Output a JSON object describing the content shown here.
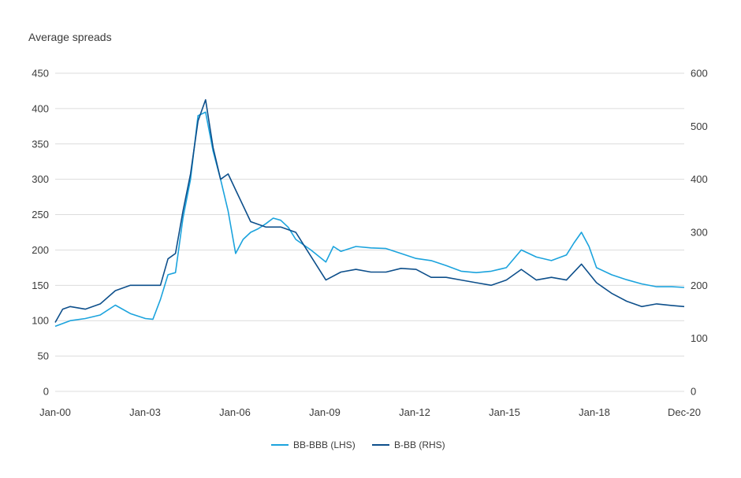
{
  "chart_data": {
    "type": "line",
    "title": "Average spreads",
    "x_ticks": [
      "Jan-00",
      "Jan-03",
      "Jan-06",
      "Jan-09",
      "Jan-12",
      "Jan-15",
      "Jan-18",
      "Dec-20"
    ],
    "x_range": [
      "2000-01",
      "2020-12"
    ],
    "y_left": {
      "lim": [
        0,
        450
      ],
      "ticks": [
        0,
        50,
        100,
        150,
        200,
        250,
        300,
        350,
        400,
        450
      ]
    },
    "y_right": {
      "lim": [
        0,
        600
      ],
      "ticks": [
        0,
        100,
        200,
        300,
        400,
        500,
        600
      ]
    },
    "grid": true,
    "legend_position": "bottom-center",
    "series": [
      {
        "name": "BB-BBB (LHS)",
        "axis": "left",
        "color": "#1ba3dd",
        "points": [
          [
            "2000-01",
            92
          ],
          [
            "2000-07",
            100
          ],
          [
            "2001-01",
            103
          ],
          [
            "2001-07",
            108
          ],
          [
            "2002-01",
            122
          ],
          [
            "2002-07",
            110
          ],
          [
            "2003-01",
            103
          ],
          [
            "2003-04",
            102
          ],
          [
            "2003-07",
            130
          ],
          [
            "2003-10",
            165
          ],
          [
            "2004-01",
            168
          ],
          [
            "2004-04",
            245
          ],
          [
            "2004-07",
            300
          ],
          [
            "2004-10",
            390
          ],
          [
            "2005-01",
            395
          ],
          [
            "2005-04",
            340
          ],
          [
            "2005-07",
            300
          ],
          [
            "2005-10",
            255
          ],
          [
            "2006-01",
            195
          ],
          [
            "2006-04",
            215
          ],
          [
            "2006-07",
            225
          ],
          [
            "2006-10",
            230
          ],
          [
            "2007-01",
            237
          ],
          [
            "2007-04",
            245
          ],
          [
            "2007-07",
            242
          ],
          [
            "2007-10",
            232
          ],
          [
            "2008-01",
            215
          ],
          [
            "2008-07",
            200
          ],
          [
            "2009-01",
            183
          ],
          [
            "2009-04",
            205
          ],
          [
            "2009-07",
            198
          ],
          [
            "2010-01",
            205
          ],
          [
            "2010-07",
            203
          ],
          [
            "2011-01",
            202
          ],
          [
            "2011-07",
            195
          ],
          [
            "2012-01",
            188
          ],
          [
            "2012-07",
            185
          ],
          [
            "2013-01",
            178
          ],
          [
            "2013-07",
            170
          ],
          [
            "2014-01",
            168
          ],
          [
            "2014-07",
            170
          ],
          [
            "2015-01",
            175
          ],
          [
            "2015-07",
            200
          ],
          [
            "2016-01",
            190
          ],
          [
            "2016-07",
            185
          ],
          [
            "2017-01",
            193
          ],
          [
            "2017-04",
            210
          ],
          [
            "2017-07",
            225
          ],
          [
            "2017-10",
            205
          ],
          [
            "2018-01",
            175
          ],
          [
            "2018-07",
            165
          ],
          [
            "2019-01",
            158
          ],
          [
            "2019-07",
            152
          ],
          [
            "2020-01",
            148
          ],
          [
            "2020-07",
            148
          ],
          [
            "2020-12",
            147
          ]
        ]
      },
      {
        "name": "B-BB (RHS)",
        "axis": "right",
        "color": "#0d4f8b",
        "points": [
          [
            "2000-01",
            130
          ],
          [
            "2000-04",
            155
          ],
          [
            "2000-07",
            160
          ],
          [
            "2001-01",
            155
          ],
          [
            "2001-07",
            165
          ],
          [
            "2002-01",
            190
          ],
          [
            "2002-07",
            200
          ],
          [
            "2003-01",
            200
          ],
          [
            "2003-07",
            200
          ],
          [
            "2003-10",
            250
          ],
          [
            "2004-01",
            260
          ],
          [
            "2004-04",
            340
          ],
          [
            "2004-07",
            410
          ],
          [
            "2004-10",
            510
          ],
          [
            "2005-01",
            550
          ],
          [
            "2005-04",
            460
          ],
          [
            "2005-07",
            400
          ],
          [
            "2005-10",
            410
          ],
          [
            "2006-01",
            380
          ],
          [
            "2006-07",
            320
          ],
          [
            "2007-01",
            310
          ],
          [
            "2007-07",
            310
          ],
          [
            "2008-01",
            300
          ],
          [
            "2008-07",
            255
          ],
          [
            "2009-01",
            210
          ],
          [
            "2009-07",
            225
          ],
          [
            "2010-01",
            230
          ],
          [
            "2010-07",
            225
          ],
          [
            "2011-01",
            225
          ],
          [
            "2011-07",
            232
          ],
          [
            "2012-01",
            230
          ],
          [
            "2012-07",
            215
          ],
          [
            "2013-01",
            215
          ],
          [
            "2013-07",
            210
          ],
          [
            "2014-01",
            205
          ],
          [
            "2014-07",
            200
          ],
          [
            "2015-01",
            210
          ],
          [
            "2015-07",
            230
          ],
          [
            "2016-01",
            210
          ],
          [
            "2016-07",
            215
          ],
          [
            "2017-01",
            210
          ],
          [
            "2017-07",
            240
          ],
          [
            "2018-01",
            205
          ],
          [
            "2018-07",
            185
          ],
          [
            "2019-01",
            170
          ],
          [
            "2019-07",
            160
          ],
          [
            "2020-01",
            165
          ],
          [
            "2020-07",
            162
          ],
          [
            "2020-12",
            160
          ]
        ]
      }
    ]
  }
}
